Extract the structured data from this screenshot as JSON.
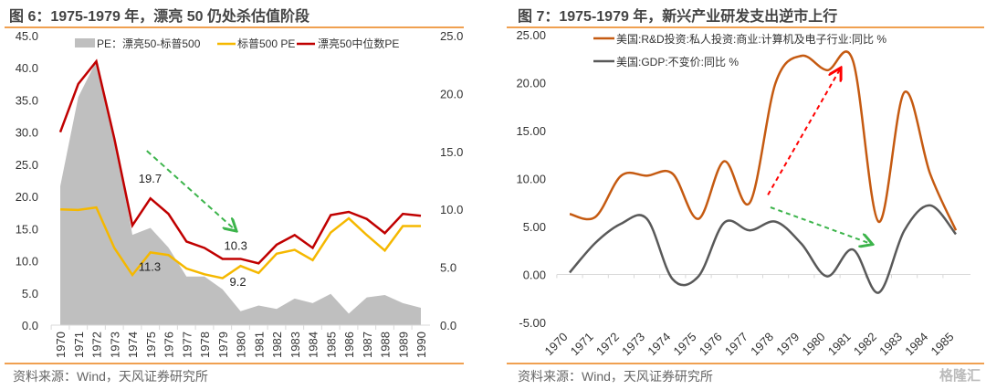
{
  "chart_data": [
    {
      "type": "line",
      "title": "图 6：1975-1979 年，漂亮 50 仍处杀估值阶段",
      "categories": [
        "1970",
        "1971",
        "1972",
        "1973",
        "1974",
        "1975",
        "1976",
        "1977",
        "1978",
        "1979",
        "1980",
        "1981",
        "1982",
        "1983",
        "1984",
        "1985",
        "1986",
        "1987",
        "1988",
        "1989",
        "1990"
      ],
      "left_axis": {
        "range": [
          0,
          45
        ],
        "ticks": [
          "0.0",
          "5.0",
          "10.0",
          "15.0",
          "20.0",
          "25.0",
          "30.0",
          "35.0",
          "40.0",
          "45.0"
        ]
      },
      "right_axis": {
        "range": [
          0,
          25
        ],
        "ticks": [
          "0.0",
          "5.0",
          "10.0",
          "15.0",
          "20.0",
          "25.0"
        ]
      },
      "series": [
        {
          "name": "PE：漂亮50-标普500",
          "kind": "area",
          "axis": "right",
          "color": "#bfbfbf",
          "values": [
            12,
            19.7,
            22.8,
            16.4,
            7.8,
            8.4,
            6.7,
            4.2,
            4.2,
            3.1,
            1.2,
            1.7,
            1.4,
            2.3,
            1.9,
            2.7,
            1.0,
            2.4,
            2.6,
            1.9,
            1.5
          ]
        },
        {
          "name": "标普500 PE",
          "kind": "line",
          "axis": "left",
          "color": "#f5b800",
          "values": [
            18,
            17.9,
            18.3,
            12,
            7.8,
            11.3,
            10.9,
            8.8,
            7.9,
            7.3,
            9.2,
            8.1,
            11.1,
            11.7,
            10.1,
            14.4,
            16.6,
            14,
            11.6,
            15.4,
            15.4
          ]
        },
        {
          "name": "漂亮50中位数PE",
          "kind": "line",
          "axis": "left",
          "color": "#c00000",
          "values": [
            30,
            37.5,
            41,
            29,
            15.5,
            19.7,
            17.3,
            13,
            12,
            10.3,
            10.3,
            9.6,
            12.5,
            14,
            12,
            17.1,
            17.6,
            16.5,
            14.3,
            17.3,
            17
          ]
        }
      ],
      "annotations": [
        {
          "text": "19.7",
          "x": "1975",
          "y": 19.7
        },
        {
          "text": "11.3",
          "x": "1975",
          "y": 11.3
        },
        {
          "text": "10.3",
          "x": "1980",
          "y": 10.3
        },
        {
          "text": "9.2",
          "x": "1980",
          "y": 9.2
        }
      ],
      "arrows": [
        {
          "color": "#3cb44b",
          "from": [
            4.8,
            27.1
          ],
          "to": [
            9.7,
            14.8
          ]
        }
      ],
      "legend": "top",
      "source": "资料来源：Wind，天风证券研究所"
    },
    {
      "type": "line",
      "title": "图 7：1975-1979 年，新兴产业研发支出逆市上行",
      "categories": [
        "1970",
        "1971",
        "1972",
        "1973",
        "1974",
        "1975",
        "1976",
        "1977",
        "1978",
        "1979",
        "1980",
        "1981",
        "1982",
        "1983",
        "1984",
        "1985"
      ],
      "ylim": [
        -5,
        25
      ],
      "ticks": [
        "-5.00",
        "0.00",
        "5.00",
        "10.00",
        "15.00",
        "20.00",
        "25.00"
      ],
      "series": [
        {
          "name": "美国:R&D投资:私人投资:商业:计算机及电子行业:同比 %",
          "color": "#c55a11",
          "values": [
            6.3,
            6.0,
            10.3,
            10.3,
            10.5,
            5.8,
            11.8,
            7.5,
            20,
            22.8,
            21.3,
            22.3,
            5.5,
            19,
            10.5,
            4.6
          ]
        },
        {
          "name": "美国:GDP:不变价:同比 %",
          "color": "#595959",
          "values": [
            0.2,
            3.3,
            5.3,
            5.8,
            -0.5,
            -0.2,
            5.4,
            4.6,
            5.5,
            3.2,
            -0.2,
            2.6,
            -1.9,
            4.6,
            7.2,
            4.2
          ]
        }
      ],
      "arrows": [
        {
          "color": "#ff0000",
          "from": [
            7.7,
            8.3
          ],
          "to": [
            10.5,
            21.4
          ]
        },
        {
          "color": "#3cb44b",
          "from": [
            7.8,
            7.0
          ],
          "to": [
            11.7,
            3.2
          ]
        }
      ],
      "legend": "top-left",
      "source": "资料来源：Wind，天风证券研究所"
    }
  ],
  "watermark": "格隆汇"
}
